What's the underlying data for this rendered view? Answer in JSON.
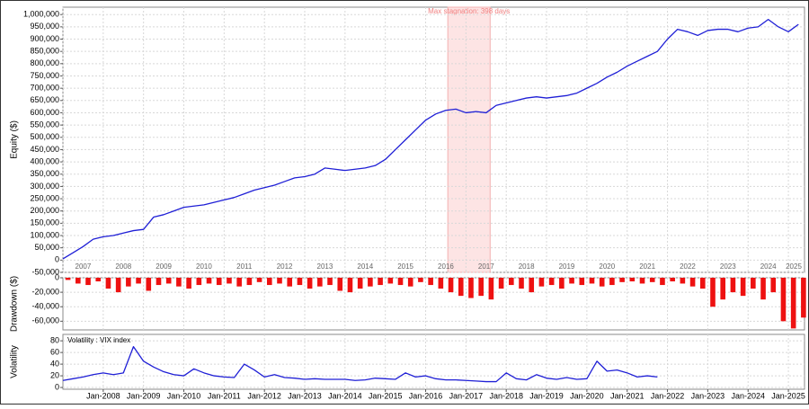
{
  "chart_data": [
    {
      "type": "line",
      "y_label": "Equity ($)",
      "color": "#1f1fd6",
      "grid": true,
      "xlim": [
        2007,
        2025.4
      ],
      "xticks": [
        2007,
        2008,
        2009,
        2010,
        2011,
        2012,
        2013,
        2014,
        2015,
        2016,
        2017,
        2018,
        2019,
        2020,
        2021,
        2022,
        2023,
        2024,
        2025
      ],
      "ylim": [
        -50000,
        1030000
      ],
      "yticks": [
        {
          "value": -50000,
          "label": "-50,000"
        },
        0,
        {
          "value": 50000,
          "label": "50,000"
        },
        {
          "value": 100000,
          "label": "100,000"
        },
        {
          "value": 150000,
          "label": "150,000"
        },
        {
          "value": 200000,
          "label": "200,000"
        },
        {
          "value": 250000,
          "label": "250,000"
        },
        {
          "value": 300000,
          "label": "300,000"
        },
        {
          "value": 350000,
          "label": "350,000"
        },
        {
          "value": 400000,
          "label": "400,000"
        },
        {
          "value": 450000,
          "label": "450,000"
        },
        {
          "value": 500000,
          "label": "500,000"
        },
        {
          "value": 550000,
          "label": "550,000"
        },
        {
          "value": 600000,
          "label": "600,000"
        },
        {
          "value": 650000,
          "label": "650,000"
        },
        {
          "value": 700000,
          "label": "700,000"
        },
        {
          "value": 750000,
          "label": "750,000"
        },
        {
          "value": 800000,
          "label": "800,000"
        },
        {
          "value": 850000,
          "label": "850,000"
        },
        {
          "value": 900000,
          "label": "900,000"
        },
        {
          "value": 950000,
          "label": "950,000"
        },
        {
          "value": 1000000,
          "label": "1,000,000"
        }
      ],
      "stagnation": {
        "label": "Max stagnation: 398 days",
        "start": 2016.55,
        "end": 2017.6
      },
      "x": [
        2007,
        2007.25,
        2007.5,
        2007.75,
        2008,
        2008.25,
        2008.5,
        2008.75,
        2009,
        2009.25,
        2009.5,
        2009.75,
        2010,
        2010.25,
        2010.5,
        2010.75,
        2011,
        2011.25,
        2011.5,
        2011.75,
        2012,
        2012.25,
        2012.5,
        2012.75,
        2013,
        2013.25,
        2013.5,
        2013.75,
        2014,
        2014.25,
        2014.5,
        2014.75,
        2015,
        2015.25,
        2015.5,
        2015.75,
        2016,
        2016.25,
        2016.5,
        2016.75,
        2017,
        2017.25,
        2017.5,
        2017.75,
        2018,
        2018.25,
        2018.5,
        2018.75,
        2019,
        2019.25,
        2019.5,
        2019.75,
        2020,
        2020.25,
        2020.5,
        2020.75,
        2021,
        2021.25,
        2021.5,
        2021.75,
        2022,
        2022.25,
        2022.5,
        2022.75,
        2023,
        2023.25,
        2023.5,
        2023.75,
        2024,
        2024.25,
        2024.5,
        2024.75,
        2025,
        2025.25
      ],
      "values": [
        5000,
        30000,
        55000,
        85000,
        95000,
        100000,
        110000,
        120000,
        125000,
        175000,
        185000,
        200000,
        215000,
        220000,
        225000,
        235000,
        245000,
        255000,
        270000,
        285000,
        295000,
        305000,
        320000,
        335000,
        340000,
        350000,
        375000,
        370000,
        365000,
        370000,
        375000,
        385000,
        410000,
        450000,
        490000,
        530000,
        570000,
        595000,
        610000,
        615000,
        600000,
        605000,
        600000,
        630000,
        640000,
        650000,
        660000,
        665000,
        660000,
        665000,
        670000,
        680000,
        700000,
        720000,
        745000,
        765000,
        790000,
        810000,
        830000,
        850000,
        900000,
        940000,
        930000,
        915000,
        935000,
        940000,
        940000,
        930000,
        945000,
        950000,
        980000,
        950000,
        930000,
        960000
      ]
    },
    {
      "type": "bar",
      "y_label": "Drawdown ($)",
      "color": "#ee1111",
      "grid": true,
      "xlim": [
        2007,
        2025.4
      ],
      "xticks": [
        2008,
        2009,
        2010,
        2011,
        2012,
        2013,
        2014,
        2015,
        2016,
        2017,
        2018,
        2019,
        2020,
        2021,
        2022,
        2023,
        2024,
        2025
      ],
      "ylim": [
        -72000,
        0
      ],
      "yticks": [
        0,
        {
          "value": -20000,
          "label": "-20,000"
        },
        {
          "value": -40000,
          "label": "-40,000"
        },
        {
          "value": -60000,
          "label": "-60,000"
        }
      ],
      "x": [
        2007,
        2007.25,
        2007.5,
        2007.75,
        2008,
        2008.25,
        2008.5,
        2008.75,
        2009,
        2009.25,
        2009.5,
        2009.75,
        2010,
        2010.25,
        2010.5,
        2010.75,
        2011,
        2011.25,
        2011.5,
        2011.75,
        2012,
        2012.25,
        2012.5,
        2012.75,
        2013,
        2013.25,
        2013.5,
        2013.75,
        2014,
        2014.25,
        2014.5,
        2014.75,
        2015,
        2015.25,
        2015.5,
        2015.75,
        2016,
        2016.25,
        2016.5,
        2016.75,
        2017,
        2017.25,
        2017.5,
        2017.75,
        2018,
        2018.25,
        2018.5,
        2018.75,
        2019,
        2019.25,
        2019.5,
        2019.75,
        2020,
        2020.25,
        2020.5,
        2020.75,
        2021,
        2021.25,
        2021.5,
        2021.75,
        2022,
        2022.25,
        2022.5,
        2022.75,
        2023,
        2023.25,
        2023.5,
        2023.75,
        2024,
        2024.25,
        2024.5,
        2024.75,
        2025,
        2025.25
      ],
      "values": [
        -3000,
        -8000,
        -10000,
        -5000,
        -15000,
        -20000,
        -12000,
        -8000,
        -18000,
        -10000,
        -8000,
        -12000,
        -15000,
        -10000,
        -8000,
        -10000,
        -8000,
        -12000,
        -10000,
        -6000,
        -10000,
        -8000,
        -12000,
        -10000,
        -15000,
        -12000,
        -10000,
        -18000,
        -20000,
        -15000,
        -12000,
        -10000,
        -8000,
        -10000,
        -12000,
        -6000,
        -10000,
        -15000,
        -20000,
        -25000,
        -28000,
        -25000,
        -30000,
        -15000,
        -10000,
        -15000,
        -20000,
        -12000,
        -10000,
        -15000,
        -8000,
        -10000,
        -8000,
        -12000,
        -10000,
        -6000,
        -5000,
        -8000,
        -6000,
        -10000,
        -5000,
        -8000,
        -12000,
        -15000,
        -40000,
        -30000,
        -20000,
        -25000,
        -15000,
        -30000,
        -20000,
        -60000,
        -70000,
        -55000
      ]
    },
    {
      "type": "line",
      "y_label": "Volatility",
      "annotation": "Volatility : VIX index",
      "color": "#1f1fd6",
      "grid": true,
      "xlim": [
        2007,
        2025.4
      ],
      "xticks": [
        {
          "value": 2008,
          "label": "Jan-2008"
        },
        {
          "value": 2009,
          "label": "Jan-2009"
        },
        {
          "value": 2010,
          "label": "Jan-2010"
        },
        {
          "value": 2011,
          "label": "Jan-2011"
        },
        {
          "value": 2012,
          "label": "Jan-2012"
        },
        {
          "value": 2013,
          "label": "Jan-2013"
        },
        {
          "value": 2014,
          "label": "Jan-2014"
        },
        {
          "value": 2015,
          "label": "Jan-2015"
        },
        {
          "value": 2016,
          "label": "Jan-2016"
        },
        {
          "value": 2017,
          "label": "Jan-2017"
        },
        {
          "value": 2018,
          "label": "Jan-2018"
        },
        {
          "value": 2019,
          "label": "Jan-2019"
        },
        {
          "value": 2020,
          "label": "Jan-2020"
        },
        {
          "value": 2021,
          "label": "Jan-2021"
        },
        {
          "value": 2022,
          "label": "Jan-2022"
        },
        {
          "value": 2023,
          "label": "Jan-2023"
        },
        {
          "value": 2024,
          "label": "Jan-2024"
        },
        {
          "value": 2025,
          "label": "Jan-2025"
        }
      ],
      "ylim": [
        -3,
        91
      ],
      "yticks": [
        0,
        20,
        40,
        60,
        80
      ],
      "x": [
        2007,
        2007.25,
        2007.5,
        2007.75,
        2008,
        2008.25,
        2008.5,
        2008.75,
        2009,
        2009.25,
        2009.5,
        2009.75,
        2010,
        2010.25,
        2010.5,
        2010.75,
        2011,
        2011.25,
        2011.5,
        2011.75,
        2012,
        2012.25,
        2012.5,
        2012.75,
        2013,
        2013.25,
        2013.5,
        2013.75,
        2014,
        2014.25,
        2014.5,
        2014.75,
        2015,
        2015.25,
        2015.5,
        2015.75,
        2016,
        2016.25,
        2016.5,
        2016.75,
        2017,
        2017.25,
        2017.5,
        2017.75,
        2018,
        2018.25,
        2018.5,
        2018.75,
        2019,
        2019.25,
        2019.5,
        2019.75,
        2020,
        2020.25,
        2020.5,
        2020.75,
        2021,
        2021.25,
        2021.5,
        2021.75,
        2022,
        2022.25,
        2022.5,
        2022.75,
        2023,
        2023.25,
        2023.5,
        2023.75,
        2024,
        2024.25,
        2024.5,
        2024.75,
        2025,
        2025.25
      ],
      "values": [
        12,
        15,
        18,
        22,
        25,
        22,
        25,
        70,
        45,
        35,
        27,
        22,
        20,
        32,
        25,
        20,
        18,
        17,
        40,
        30,
        18,
        22,
        17,
        16,
        14,
        15,
        14,
        14,
        14,
        12,
        13,
        16,
        15,
        14,
        25,
        18,
        20,
        15,
        13,
        13,
        12,
        11,
        10,
        10,
        25,
        15,
        13,
        22,
        16,
        14,
        17,
        14,
        15,
        45,
        28,
        30,
        25,
        18,
        20,
        18,
        null,
        null,
        null,
        null,
        null,
        null,
        null,
        null,
        null,
        null,
        null,
        null,
        null,
        null
      ]
    }
  ]
}
